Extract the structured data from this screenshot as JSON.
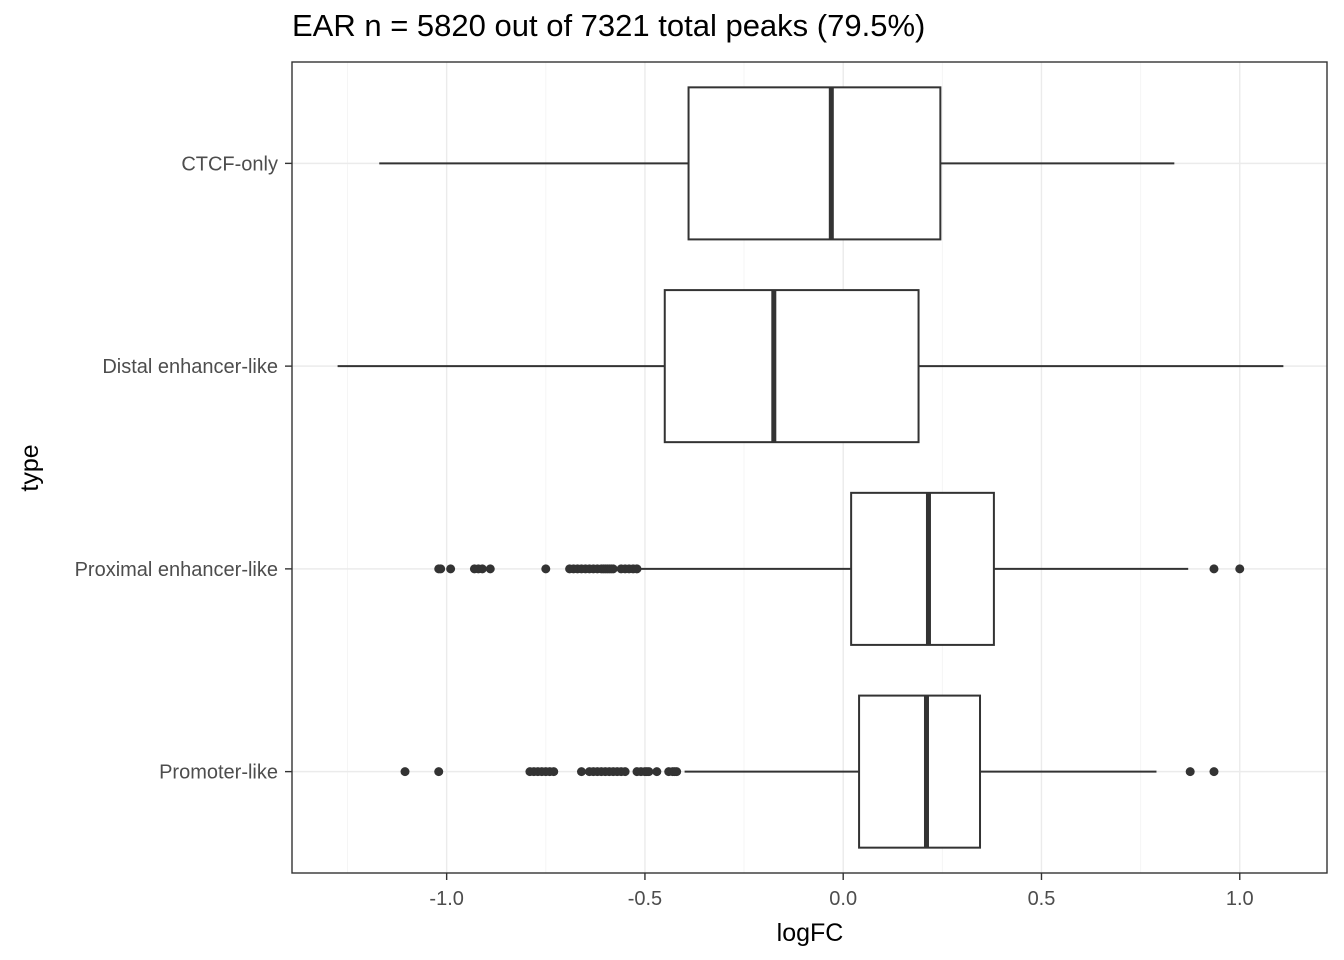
{
  "chart_data": {
    "type": "boxplot",
    "orientation": "horizontal",
    "title": "EAR n = 5820 out of 7321 total peaks (79.5%)",
    "xlabel": "logFC",
    "ylabel": "type",
    "xlim": [
      -1.39,
      1.22
    ],
    "xticks": [
      -1.0,
      -0.5,
      0.0,
      0.5,
      1.0
    ],
    "xtick_labels": [
      "-1.0",
      "-0.5",
      "0.0",
      "0.5",
      "1.0"
    ],
    "grid": true,
    "theme": "bw",
    "colors": {
      "box_stroke": "#333333",
      "box_fill": "#ffffff",
      "outlier": "#333333",
      "grid_major": "#ebebeb",
      "grid_minor": "#f5f5f5",
      "panel_border": "#333333",
      "tick_label": "#4d4d4d"
    },
    "categories": [
      "CTCF-only",
      "Distal enhancer-like",
      "Proximal enhancer-like",
      "Promoter-like"
    ],
    "boxes": [
      {
        "category": "CTCF-only",
        "whisker_low": -1.17,
        "q1": -0.39,
        "median": -0.03,
        "q3": 0.245,
        "whisker_high": 0.835,
        "outliers": []
      },
      {
        "category": "Distal enhancer-like",
        "whisker_low": -1.275,
        "q1": -0.45,
        "median": -0.175,
        "q3": 0.19,
        "whisker_high": 1.11,
        "outliers": []
      },
      {
        "category": "Proximal enhancer-like",
        "whisker_low": -0.51,
        "q1": 0.02,
        "median": 0.215,
        "q3": 0.38,
        "whisker_high": 0.87,
        "outliers": [
          -1.02,
          -1.015,
          -0.99,
          -0.93,
          -0.92,
          -0.91,
          -0.89,
          -0.75,
          -0.69,
          -0.68,
          -0.67,
          -0.66,
          -0.65,
          -0.64,
          -0.63,
          -0.62,
          -0.61,
          -0.605,
          -0.6,
          -0.595,
          -0.59,
          -0.585,
          -0.58,
          -0.56,
          -0.55,
          -0.54,
          -0.53,
          -0.52,
          0.935,
          1.0
        ]
      },
      {
        "category": "Promoter-like",
        "whisker_low": -0.4,
        "q1": 0.04,
        "median": 0.21,
        "q3": 0.345,
        "whisker_high": 0.79,
        "outliers": [
          -1.105,
          -1.02,
          -0.79,
          -0.78,
          -0.77,
          -0.76,
          -0.75,
          -0.74,
          -0.73,
          -0.66,
          -0.64,
          -0.63,
          -0.62,
          -0.61,
          -0.6,
          -0.59,
          -0.58,
          -0.57,
          -0.56,
          -0.55,
          -0.52,
          -0.51,
          -0.5,
          -0.495,
          -0.49,
          -0.47,
          -0.44,
          -0.43,
          -0.425,
          -0.42,
          0.875,
          0.935
        ]
      }
    ]
  }
}
